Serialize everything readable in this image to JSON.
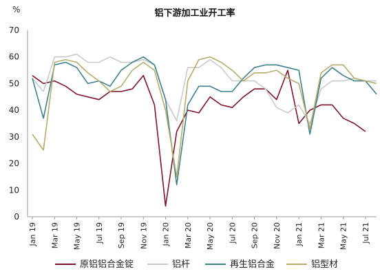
{
  "chart_data": {
    "type": "line",
    "title": "铝下游加工业开工率",
    "ylabel": "%",
    "xlabel": "",
    "ylim": [
      0,
      70
    ],
    "yticks": [
      0,
      10,
      20,
      30,
      40,
      50,
      60,
      70
    ],
    "grid": false,
    "legend_position": "bottom",
    "x": [
      "Jan 19",
      "Feb 19",
      "Mar 19",
      "Apr 19",
      "May 19",
      "Jun 19",
      "Jul 19",
      "Aug 19",
      "Sep 19",
      "Oct 19",
      "Nov 19",
      "Dec 19",
      "Jan 20",
      "Feb 20",
      "Mar 20",
      "Apr 20",
      "May 20",
      "Jun 20",
      "Jul 20",
      "Aug 20",
      "Sep 20",
      "Oct 20",
      "Nov 20",
      "Dec 20",
      "Jan 21",
      "Feb 21",
      "Mar 21",
      "Apr 21",
      "May 21",
      "Jun 21",
      "Jul 21",
      "Aug 21"
    ],
    "x_tick_labels": [
      "Jan 19",
      "Mar 19",
      "May 19",
      "Jul 19",
      "Sep 19",
      "Nov 19",
      "Jan 20",
      "Mar 20",
      "May 20",
      "Jul 20",
      "Sep 20",
      "Nov 20",
      "Jan 21",
      "Mar 21",
      "May 21",
      "Jul 21"
    ],
    "series": [
      {
        "name": "原铝铝合金锭",
        "color": "#7a1426",
        "values": [
          53,
          50,
          51,
          49,
          46,
          45,
          44,
          47,
          47,
          48,
          53,
          42,
          4,
          32,
          40,
          39,
          45,
          42,
          41,
          45,
          48,
          48,
          44,
          55,
          35,
          40,
          42,
          42,
          37,
          35,
          32,
          null
        ]
      },
      {
        "name": "铝杆",
        "color": "#c8ccc6",
        "values": [
          52,
          47,
          60,
          60,
          61,
          58,
          58,
          60,
          58,
          58,
          59,
          57,
          44,
          36,
          56,
          56,
          59,
          56,
          51,
          51,
          51,
          48,
          41,
          39,
          42,
          35,
          48,
          51,
          51,
          52,
          51,
          51
        ]
      },
      {
        "name": "再生铝合金",
        "color": "#3e7f8c",
        "values": [
          52,
          37,
          57,
          58,
          56,
          50,
          51,
          49,
          55,
          58,
          60,
          57,
          44,
          12,
          42,
          49,
          49,
          47,
          47,
          52,
          56,
          57,
          57,
          56,
          55,
          31,
          52,
          56,
          53,
          51,
          51,
          46
        ]
      },
      {
        "name": "铝型材",
        "color": "#b5ab6c",
        "values": [
          31,
          25,
          58,
          59,
          58,
          54,
          51,
          47,
          49,
          55,
          58,
          55,
          40,
          15,
          51,
          59,
          60,
          58,
          55,
          51,
          54,
          54,
          55,
          52,
          50,
          33,
          54,
          57,
          57,
          52,
          51,
          50
        ]
      }
    ]
  }
}
